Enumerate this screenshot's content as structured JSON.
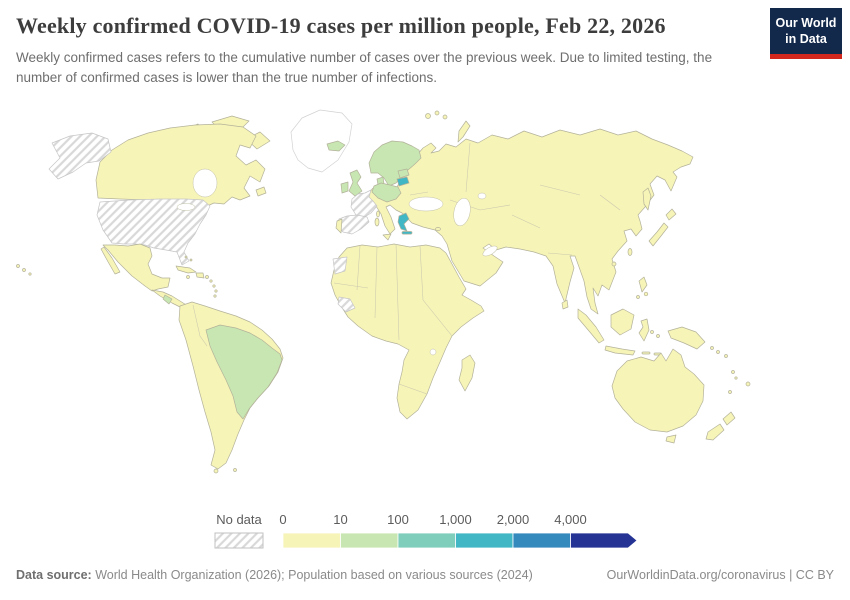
{
  "header": {
    "title": "Weekly confirmed COVID-19 cases per million people, Feb 22, 2026",
    "subtitle": "Weekly confirmed cases refers to the cumulative number of cases over the previous week. Due to limited testing, the number of confirmed cases is lower than the true number of infections.",
    "logo": {
      "line1": "Our World",
      "line2": "in Data",
      "bg_color": "#12294B",
      "accent_color": "#D3261C"
    }
  },
  "legend": {
    "no_data_label": "No data",
    "tick_labels": [
      "0",
      "10",
      "100",
      "1,000",
      "2,000",
      "4,000"
    ],
    "bin_colors": [
      "#f7f4b7",
      "#c7e6b1",
      "#7fcdbb",
      "#41b6c4",
      "#3489bd",
      "#253494"
    ],
    "text_color": "#5b5b5b"
  },
  "map": {
    "ocean_color": "#ffffff",
    "border_color": "#b3b29a",
    "no_data_border": "#c6c6c6",
    "blank_border": "#d2d2d2",
    "regions": {
      "canada": 0,
      "alaska": "no_data",
      "united-states": "no_data",
      "greenland": "blank",
      "mexico": 0,
      "central-america": 0,
      "costa-rica": 1,
      "cuba": 0,
      "hispaniola": 0,
      "south-america": 0,
      "brazil": 1,
      "africa": 0,
      "western-sahara": "no_data",
      "guinea": "no_data",
      "madagascar": 0,
      "eurasia": 0,
      "scandinavia": 1,
      "iceland": 1,
      "united-kingdom": 1,
      "ireland": 1,
      "central-europe": 1,
      "denmark": 1,
      "baltic-states": 1,
      "lithuania": 3,
      "greece": 3,
      "france": "no_data",
      "spain": "no_data",
      "portugal": 0,
      "italy-islands": 0,
      "japan": 0,
      "sakhalin": 0,
      "taiwan": 0,
      "philippines": 0,
      "indonesia": 0,
      "new-guinea": 0,
      "australia": 0,
      "new-zealand": 0,
      "sri-lanka": 0,
      "arctic-islands": 0,
      "minor-islands": 0
    }
  },
  "footer": {
    "source_label": "Data source:",
    "source_text": " World Health Organization (2026); Population based on various sources (2024)",
    "right_text": "OurWorldinData.org/coronavirus | CC BY"
  }
}
